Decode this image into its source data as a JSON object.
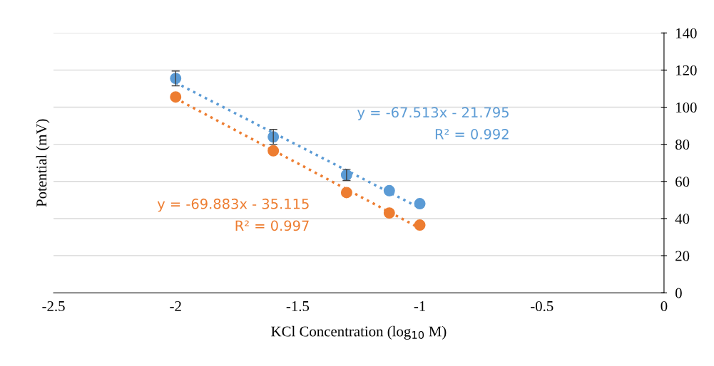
{
  "chart_data": {
    "type": "scatter",
    "xlabel": "KCl Concentration (log$_{10}$ M)",
    "ylabel": "Potential (mV)",
    "xlim": [
      -2.5,
      0
    ],
    "xticks": [
      -2.5,
      -2,
      -1.5,
      -1,
      -0.5,
      0
    ],
    "ylim": [
      0,
      140
    ],
    "yticks": [
      0,
      20,
      40,
      60,
      80,
      100,
      120,
      140
    ],
    "grid": "y",
    "series": [
      {
        "color": "#5b9bd5",
        "marker": "circle",
        "x": [
          -2,
          -1.6,
          -1.3,
          -1.125,
          -1
        ],
        "values": [
          115.5,
          84,
          63.5,
          55,
          48
        ],
        "errors": [
          4,
          4,
          3,
          null,
          null
        ]
      },
      {
        "color": "#ed7d31",
        "marker": "circle",
        "x": [
          -2,
          -1.6,
          -1.3,
          -1.125,
          -1
        ],
        "values": [
          105.5,
          76.5,
          54,
          43,
          36.5
        ]
      },
      {
        "type": "line",
        "color": "#5b9bd5",
        "marker": "none",
        "line_style": "dotted",
        "x": [
          -2,
          -1
        ],
        "values": [
          113.2,
          45.7
        ]
      },
      {
        "type": "line",
        "color": "#ed7d31",
        "marker": "none",
        "line_style": "dotted",
        "x": [
          -2,
          -1
        ],
        "values": [
          104.7,
          34.8
        ]
      }
    ],
    "annotations": [
      "y = -67.513x - 21.795\nR² = 0.992",
      "y = -69.883x - 35.115\nR² = 0.997"
    ]
  }
}
